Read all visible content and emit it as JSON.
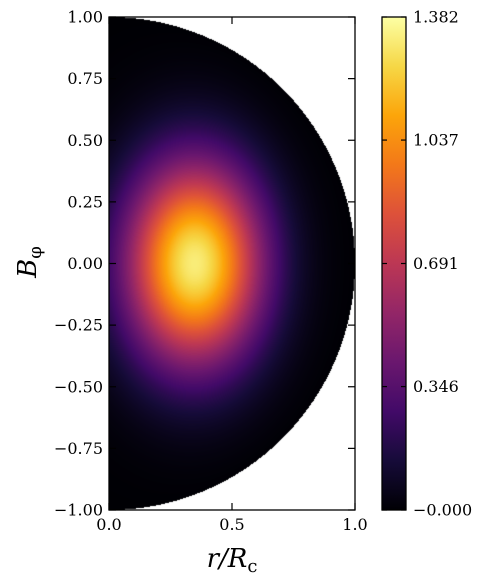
{
  "chart_data": {
    "type": "heatmap",
    "title": "",
    "xlabel": "r/R_c",
    "ylabel": "B_phi",
    "xlabel_parts": {
      "main": "r/R",
      "sub": "c"
    },
    "ylabel_parts": {
      "main": "B",
      "sub": "φ"
    },
    "xlim": [
      0.0,
      1.0
    ],
    "ylim": [
      -1.0,
      1.0
    ],
    "x_ticks": [
      "0.0",
      "0.5",
      "1.0"
    ],
    "x_tick_values": [
      0.0,
      0.5,
      1.0
    ],
    "y_ticks": [
      "1.00",
      "0.75",
      "0.50",
      "0.25",
      "0.00",
      "−0.25",
      "−0.50",
      "−0.75",
      "−1.00"
    ],
    "y_tick_values": [
      1.0,
      0.75,
      0.5,
      0.25,
      0.0,
      -0.25,
      -0.5,
      -0.75,
      -1.0
    ],
    "domain": "half-disk r^2 + z^2 <= 1, r >= 0",
    "field_peak": {
      "r": 0.36,
      "z": 0.0,
      "value": 1.382
    },
    "colormap": "inferno",
    "colorbar": {
      "min": 0.0,
      "max": 1.382,
      "tick_labels": [
        "1.382",
        "1.037",
        "0.691",
        "0.346",
        "−0.000"
      ],
      "tick_values": [
        1.382,
        1.037,
        0.691,
        0.346,
        0.0
      ]
    },
    "grid": false,
    "legend": "none"
  }
}
